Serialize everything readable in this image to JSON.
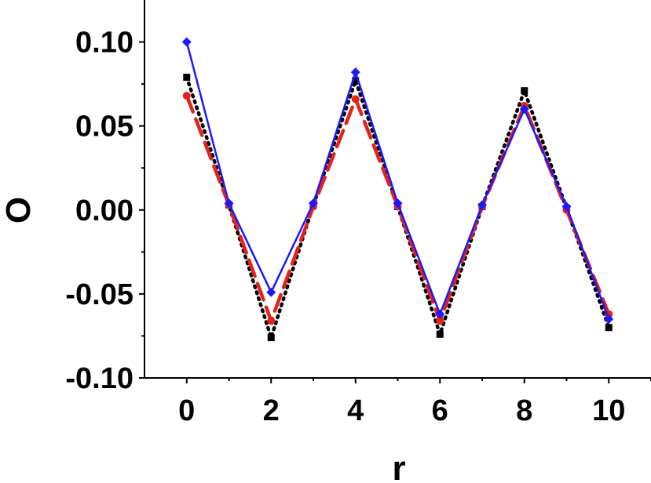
{
  "chart_data": {
    "type": "line",
    "xlabel": "r",
    "ylabel": "O",
    "xlim": [
      -1,
      11
    ],
    "ylim": [
      -0.1,
      0.125
    ],
    "x_ticks": [
      0,
      2,
      4,
      6,
      8,
      10
    ],
    "x_tick_labels": [
      "0",
      "2",
      "4",
      "6",
      "8",
      "10"
    ],
    "y_ticks": [
      -0.1,
      -0.05,
      0.0,
      0.05,
      0.1
    ],
    "y_tick_labels": [
      "-0.10",
      "-0.05",
      "0.00",
      "0.05",
      "0.10"
    ],
    "grid": false,
    "x": [
      0,
      1,
      2,
      3,
      4,
      5,
      6,
      7,
      8,
      9,
      10
    ],
    "series": [
      {
        "values": [
          0.079,
          0.003,
          -0.076,
          0.003,
          0.077,
          0.002,
          -0.074,
          0.002,
          0.071,
          0.001,
          -0.07
        ],
        "color": "#000000",
        "line_style": "dotted",
        "marker": "square"
      },
      {
        "values": [
          0.068,
          0.003,
          -0.066,
          0.002,
          0.066,
          0.002,
          -0.066,
          0.002,
          0.062,
          0.0,
          -0.062
        ],
        "color": "#e8201c",
        "line_style": "dashed",
        "marker": "circle"
      },
      {
        "values": [
          0.1,
          0.004,
          -0.049,
          0.004,
          0.082,
          0.004,
          -0.062,
          0.003,
          0.06,
          0.002,
          -0.065
        ],
        "color": "#1a1aff",
        "line_style": "solid",
        "marker": "diamond"
      }
    ]
  }
}
